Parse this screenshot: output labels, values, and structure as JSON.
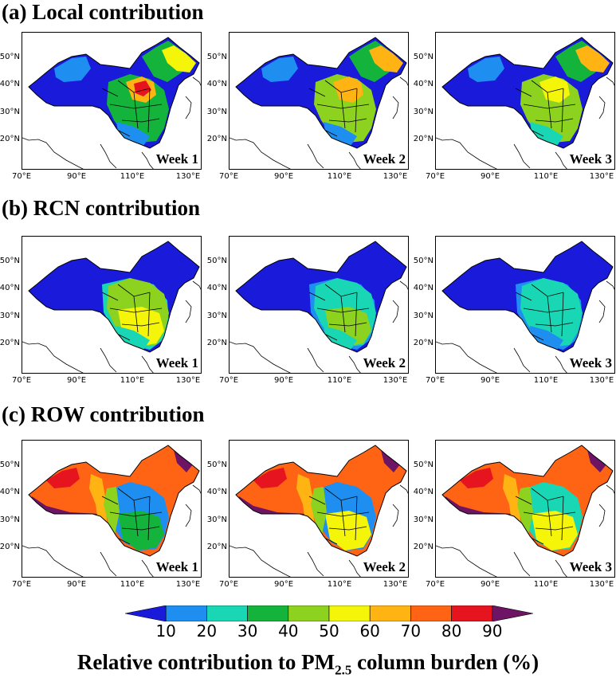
{
  "rows": [
    {
      "label": "(a) Local contribution"
    },
    {
      "label": "(b) RCN contribution"
    },
    {
      "label": "(c) ROW contribution"
    }
  ],
  "weeks": [
    "Week 1",
    "Week 2",
    "Week 3"
  ],
  "lat_ticks": [
    "50°N",
    "40°N",
    "30°N",
    "20°N"
  ],
  "lon_ticks": [
    "70°E",
    "90°E",
    "110°E",
    "130°E"
  ],
  "colorbar": {
    "ticks": [
      "10",
      "20",
      "30",
      "40",
      "50",
      "60",
      "70",
      "80",
      "90"
    ],
    "colors": [
      "#1a1adb",
      "#1e8ff0",
      "#19d6b4",
      "#14b43c",
      "#8cd21e",
      "#f5f50a",
      "#ffb414",
      "#ff6414",
      "#e6141e",
      "#6e1464"
    ],
    "title_main": "Relative contribution to PM",
    "title_sub": "2.5",
    "title_end": " column burden (%)"
  },
  "palette": {
    "blue": "#1a1adb",
    "lightblue": "#1e8ff0",
    "teal": "#19d6b4",
    "green": "#14b43c",
    "lime": "#8cd21e",
    "yellow": "#f5f50a",
    "orange": "#ffb414",
    "darkorange": "#ff6414",
    "red": "#e6141e",
    "purple": "#6e1464"
  },
  "maps": [
    [
      {
        "base": "blue",
        "regions": [
          [
            "lightblue",
            "w"
          ],
          [
            "green",
            "ne"
          ],
          [
            "yellow",
            "ne2"
          ],
          [
            "green",
            "east"
          ],
          [
            "orange",
            "nc"
          ],
          [
            "red",
            "nc2"
          ],
          [
            "lightblue",
            "south"
          ]
        ]
      },
      {
        "base": "blue",
        "regions": [
          [
            "lightblue",
            "w"
          ],
          [
            "green",
            "ne"
          ],
          [
            "orange",
            "ne2"
          ],
          [
            "lime",
            "east"
          ],
          [
            "orange",
            "nc"
          ],
          [
            "lightblue",
            "south"
          ]
        ]
      },
      {
        "base": "blue",
        "regions": [
          [
            "lightblue",
            "w"
          ],
          [
            "green",
            "ne"
          ],
          [
            "orange",
            "ne2"
          ],
          [
            "lime",
            "east"
          ],
          [
            "yellow",
            "nc"
          ],
          [
            "teal",
            "south"
          ]
        ]
      }
    ],
    [
      {
        "base": "blue",
        "regions": [
          [
            "teal",
            "mid"
          ],
          [
            "lime",
            "east"
          ],
          [
            "yellow",
            "se"
          ],
          [
            "teal",
            "south"
          ]
        ]
      },
      {
        "base": "blue",
        "regions": [
          [
            "lightblue",
            "mid"
          ],
          [
            "teal",
            "east"
          ],
          [
            "lime",
            "se"
          ],
          [
            "teal",
            "south"
          ]
        ]
      },
      {
        "base": "blue",
        "regions": [
          [
            "lightblue",
            "mid"
          ],
          [
            "teal",
            "east"
          ],
          [
            "teal",
            "se"
          ],
          [
            "lightblue",
            "south"
          ]
        ]
      }
    ],
    [
      {
        "base": "darkorange",
        "regions": [
          [
            "purple",
            "tibet"
          ],
          [
            "orange",
            "band"
          ],
          [
            "red",
            "nw"
          ],
          [
            "lightblue",
            "east"
          ],
          [
            "green",
            "se"
          ],
          [
            "purple",
            "ne3"
          ],
          [
            "lime",
            "mid"
          ]
        ]
      },
      {
        "base": "darkorange",
        "regions": [
          [
            "purple",
            "tibet"
          ],
          [
            "orange",
            "band"
          ],
          [
            "red",
            "nw"
          ],
          [
            "lightblue",
            "east"
          ],
          [
            "yellow",
            "se"
          ],
          [
            "purple",
            "ne3"
          ],
          [
            "lime",
            "mid"
          ]
        ]
      },
      {
        "base": "darkorange",
        "regions": [
          [
            "purple",
            "tibet"
          ],
          [
            "orange",
            "band"
          ],
          [
            "red",
            "nw"
          ],
          [
            "teal",
            "east"
          ],
          [
            "yellow",
            "se"
          ],
          [
            "purple",
            "ne3"
          ],
          [
            "lime",
            "mid"
          ]
        ]
      }
    ]
  ]
}
